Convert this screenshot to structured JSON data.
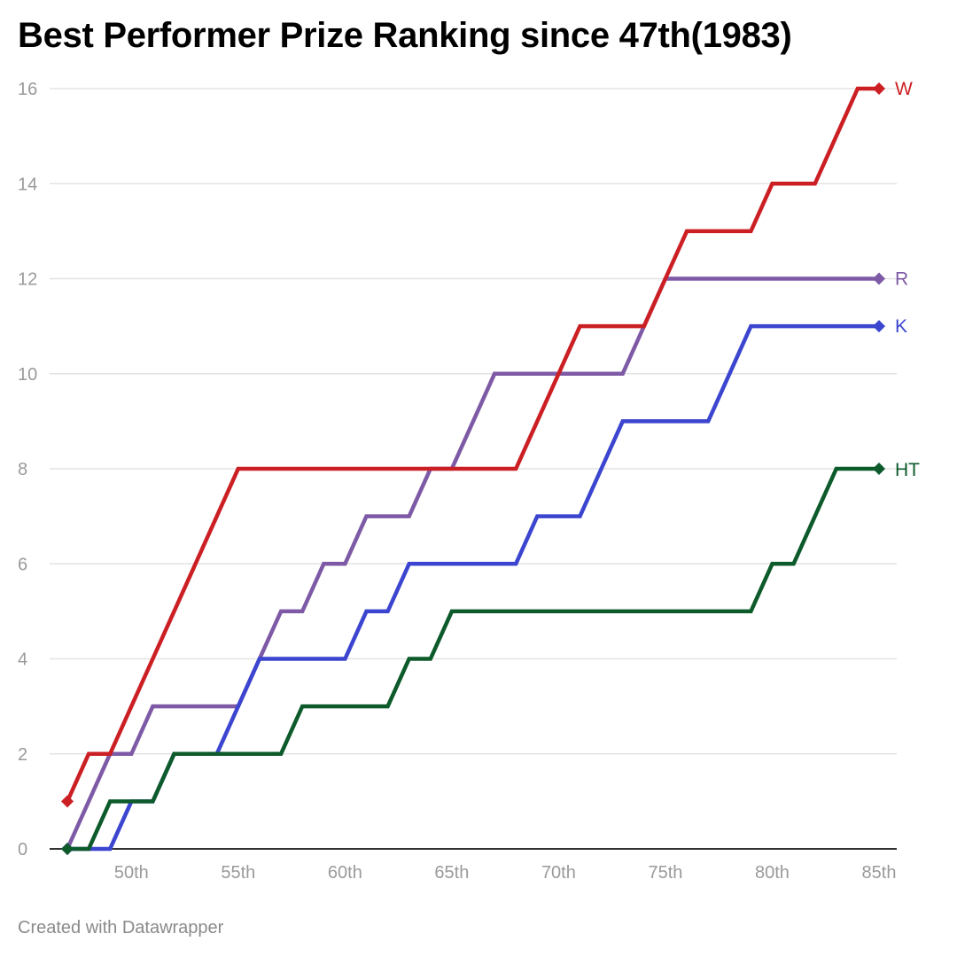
{
  "title": "Best Performer Prize Ranking since 47th(1983)",
  "footer": "Created with Datawrapper",
  "chart_data": {
    "type": "line",
    "step_shape": "diagonal-step",
    "x_start": 47,
    "x_end": 85,
    "xlim": [
      47,
      85
    ],
    "ylim": [
      0,
      16
    ],
    "grid": true,
    "x_ticks": [
      {
        "value": 50,
        "label": "50th"
      },
      {
        "value": 55,
        "label": "55th"
      },
      {
        "value": 60,
        "label": "60th"
      },
      {
        "value": 65,
        "label": "65th"
      },
      {
        "value": 70,
        "label": "70th"
      },
      {
        "value": 75,
        "label": "75th"
      },
      {
        "value": 80,
        "label": "80th"
      },
      {
        "value": 85,
        "label": "85th"
      }
    ],
    "y_ticks": [
      0,
      2,
      4,
      6,
      8,
      10,
      12,
      14,
      16
    ],
    "series": [
      {
        "name": "R",
        "color": "#7e5aa6",
        "values": [
          0,
          1,
          2,
          2,
          3,
          3,
          3,
          3,
          3,
          4,
          5,
          5,
          6,
          6,
          7,
          7,
          7,
          8,
          8,
          9,
          10,
          10,
          10,
          10,
          10,
          10,
          10,
          11,
          12,
          12,
          12,
          12,
          12,
          12,
          12,
          12,
          12,
          12,
          12
        ]
      },
      {
        "name": "K",
        "color": "#3b45cf",
        "values": [
          0,
          0,
          0,
          1,
          1,
          2,
          2,
          2,
          3,
          4,
          4,
          4,
          4,
          4,
          5,
          5,
          6,
          6,
          6,
          6,
          6,
          6,
          7,
          7,
          7,
          8,
          9,
          9,
          9,
          9,
          9,
          10,
          11,
          11,
          11,
          11,
          11,
          11,
          11
        ]
      },
      {
        "name": "HT",
        "color": "#0d5a2b",
        "values": [
          0,
          0,
          1,
          1,
          1,
          2,
          2,
          2,
          2,
          2,
          2,
          3,
          3,
          3,
          3,
          3,
          4,
          4,
          5,
          5,
          5,
          5,
          5,
          5,
          5,
          5,
          5,
          5,
          5,
          5,
          5,
          5,
          5,
          6,
          6,
          7,
          8,
          8,
          8
        ]
      },
      {
        "name": "W",
        "color": "#cc1f24",
        "values": [
          1,
          2,
          2,
          3,
          4,
          5,
          6,
          7,
          8,
          8,
          8,
          8,
          8,
          8,
          8,
          8,
          8,
          8,
          8,
          8,
          8,
          8,
          9,
          10,
          11,
          11,
          11,
          11,
          12,
          13,
          13,
          13,
          13,
          14,
          14,
          14,
          15,
          16,
          16
        ]
      }
    ]
  }
}
